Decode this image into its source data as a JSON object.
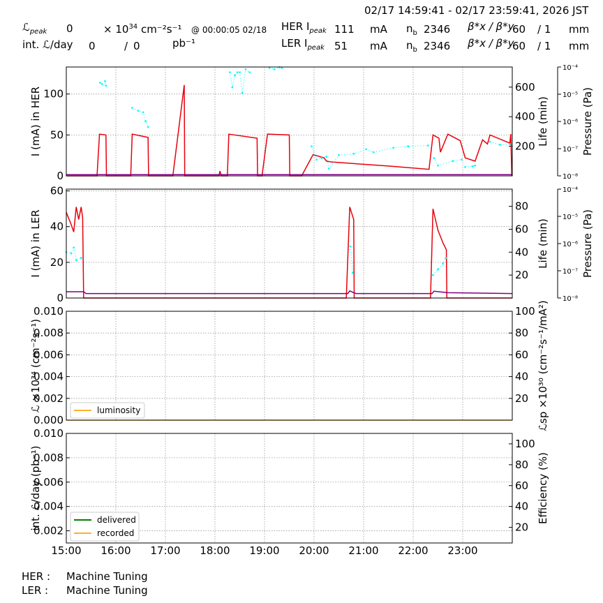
{
  "header": {
    "time_range": "02/17 14:59:41 - 02/17 23:59:41, 2026 JST",
    "lpeak_label": "ℒ",
    "lpeak_sub": "peak",
    "lpeak_value": "0",
    "lpeak_unit_prefix": "× 10",
    "lpeak_unit_exp": "34",
    "lpeak_unit_rest": "cm⁻²s⁻¹",
    "lpeak_time": "@ 00:00:05 02/18",
    "intl_label": "int. ℒ/day",
    "intl_value": "0",
    "intl_sep": "/",
    "intl_value2": "0",
    "intl_unit": "pb⁻¹",
    "her_label": "HER I",
    "her_sub": "peak",
    "her_value": "111",
    "her_unit": "mA",
    "her_nb_label": "n",
    "her_nb_sub": "b",
    "her_nb_value": "2346",
    "her_beta_label": "β*x / β*y",
    "her_beta_value": "60",
    "her_beta_ratio": "/ 1",
    "her_beta_unit": "mm",
    "ler_label": "LER I",
    "ler_sub": "peak",
    "ler_value": "51",
    "ler_unit": "mA",
    "ler_nb_label": "n",
    "ler_nb_sub": "b",
    "ler_nb_value": "2346",
    "ler_beta_label": "β*x / β*y",
    "ler_beta_value": "60",
    "ler_beta_ratio": "/ 1",
    "ler_beta_unit": "mm"
  },
  "footer": {
    "her_label": "HER :",
    "her_status": "Machine Tuning",
    "ler_label": "LER :",
    "ler_status": "Machine Tuning"
  },
  "colors": {
    "current": "#e8000b",
    "life": "#00ffff",
    "pressure": "#800080",
    "luminosity": "#ffb02e",
    "delivered": "#008000",
    "recorded": "#ffb02e",
    "grid": "#999999"
  },
  "chart_data": [
    {
      "type": "line",
      "panel": "her",
      "ylabel": "I (mA) in HER",
      "y2label": "Life (min)",
      "y3label": "Pressure (Pa)",
      "xlim": [
        15.0,
        24.0
      ],
      "ylim": [
        0,
        133
      ],
      "y2lim": [
        0,
        736
      ],
      "yticks": [
        0,
        50,
        100
      ],
      "y2ticks": [
        200,
        400,
        600
      ],
      "y3ticks": [
        "10⁻⁸",
        "10⁻⁷",
        "10⁻⁶",
        "10⁻⁵",
        "10⁻⁴"
      ],
      "series": [
        {
          "role": "current",
          "segments": [
            [
              [
                15.0,
                0
              ],
              [
                15.62,
                0
              ],
              [
                15.67,
                51
              ],
              [
                15.8,
                50
              ],
              [
                15.81,
                0
              ],
              [
                16.3,
                0
              ],
              [
                16.33,
                51
              ],
              [
                16.65,
                47
              ],
              [
                16.66,
                0
              ],
              [
                17.15,
                0
              ],
              [
                17.38,
                111
              ],
              [
                17.39,
                0
              ],
              [
                18.08,
                0
              ],
              [
                18.1,
                6
              ],
              [
                18.13,
                0
              ],
              [
                18.25,
                0
              ],
              [
                18.28,
                51
              ],
              [
                18.85,
                46
              ],
              [
                18.86,
                0
              ],
              [
                18.95,
                0
              ],
              [
                19.06,
                51
              ],
              [
                19.5,
                50
              ],
              [
                19.51,
                0
              ],
              [
                19.75,
                0
              ],
              [
                19.98,
                26
              ],
              [
                20.2,
                22
              ],
              [
                20.25,
                18
              ],
              [
                20.35,
                17
              ],
              [
                21.5,
                12
              ],
              [
                22.32,
                8
              ],
              [
                22.4,
                50
              ],
              [
                22.52,
                46
              ],
              [
                22.55,
                29
              ],
              [
                22.7,
                51
              ],
              [
                22.95,
                43
              ],
              [
                23.05,
                22
              ],
              [
                23.25,
                18
              ],
              [
                23.4,
                44
              ],
              [
                23.5,
                39
              ],
              [
                23.55,
                50
              ],
              [
                23.95,
                40
              ],
              [
                23.97,
                51
              ],
              [
                23.99,
                0
              ]
            ]
          ]
        },
        {
          "role": "life",
          "segments": [
            [
              [
                15.68,
                630
              ],
              [
                15.72,
                620
              ],
              [
                15.78,
                640
              ],
              [
                15.8,
                610
              ]
            ],
            [
              [
                16.33,
                460
              ],
              [
                16.45,
                440
              ],
              [
                16.55,
                430
              ],
              [
                16.6,
                370
              ],
              [
                16.65,
                330
              ]
            ],
            [
              [
                18.3,
                700
              ],
              [
                18.35,
                600
              ],
              [
                18.4,
                680
              ],
              [
                18.45,
                700
              ],
              [
                18.5,
                700
              ],
              [
                18.55,
                560
              ],
              [
                18.62,
                720
              ],
              [
                18.7,
                700
              ]
            ],
            [
              [
                19.1,
                730
              ],
              [
                19.2,
                720
              ],
              [
                19.3,
                735
              ],
              [
                19.35,
                730
              ]
            ],
            [
              [
                19.95,
                200
              ],
              [
                20.05,
                110
              ],
              [
                20.15,
                120
              ],
              [
                20.25,
                130
              ],
              [
                20.3,
                50
              ],
              [
                20.5,
                140
              ],
              [
                20.8,
                150
              ],
              [
                21.05,
                180
              ],
              [
                21.2,
                160
              ],
              [
                21.6,
                190
              ],
              [
                21.9,
                200
              ],
              [
                22.3,
                205
              ]
            ],
            [
              [
                22.42,
                120
              ],
              [
                22.5,
                70
              ],
              [
                22.8,
                100
              ],
              [
                22.98,
                110
              ]
            ],
            [
              [
                23.05,
                60
              ],
              [
                23.2,
                65
              ],
              [
                23.25,
                70
              ]
            ],
            [
              [
                23.55,
                230
              ],
              [
                23.75,
                210
              ],
              [
                23.95,
                215
              ]
            ]
          ]
        },
        {
          "role": "pressure",
          "segments": [
            [
              [
                15.0,
                1.5
              ],
              [
                24.0,
                1.5
              ]
            ]
          ]
        }
      ]
    },
    {
      "type": "line",
      "panel": "ler",
      "ylabel": "I (mA) in LER",
      "y2label": "Life (min)",
      "y3label": "Pressure (Pa)",
      "xlim": [
        15.0,
        24.0
      ],
      "ylim": [
        0,
        61
      ],
      "y2lim": [
        0,
        95
      ],
      "yticks": [
        0,
        20,
        40,
        60
      ],
      "y2ticks": [
        20,
        40,
        60,
        80
      ],
      "y3ticks": [
        "10⁻⁸",
        "10⁻⁷",
        "10⁻⁶",
        "10⁻⁵",
        "10⁻⁴"
      ],
      "series": [
        {
          "role": "current",
          "segments": [
            [
              [
                15.0,
                48
              ],
              [
                15.1,
                41
              ],
              [
                15.15,
                37
              ],
              [
                15.2,
                51
              ],
              [
                15.25,
                44
              ],
              [
                15.3,
                51
              ],
              [
                15.33,
                45
              ],
              [
                15.35,
                0
              ],
              [
                20.65,
                0
              ],
              [
                20.72,
                51
              ],
              [
                20.8,
                44
              ],
              [
                20.81,
                0
              ],
              [
                22.35,
                0
              ],
              [
                22.4,
                50
              ],
              [
                22.5,
                38
              ],
              [
                22.6,
                31
              ],
              [
                22.67,
                27
              ],
              [
                22.68,
                0
              ],
              [
                24.0,
                0
              ]
            ]
          ]
        },
        {
          "role": "life",
          "segments": [
            [
              [
                15.0,
                40
              ],
              [
                15.1,
                39
              ],
              [
                15.15,
                44
              ],
              [
                15.2,
                33
              ],
              [
                15.3,
                35
              ]
            ],
            [
              [
                20.73,
                45
              ],
              [
                20.78,
                22
              ]
            ],
            [
              [
                22.4,
                20
              ],
              [
                22.5,
                25
              ],
              [
                22.6,
                30
              ],
              [
                22.66,
                35
              ]
            ]
          ]
        },
        {
          "role": "pressure",
          "segments": [
            [
              [
                15.0,
                3.5
              ],
              [
                15.35,
                3.5
              ],
              [
                15.4,
                2.5
              ],
              [
                20.68,
                2.5
              ],
              [
                20.72,
                4
              ],
              [
                20.8,
                3
              ],
              [
                20.85,
                2.5
              ],
              [
                22.38,
                2.5
              ],
              [
                22.42,
                3.8
              ],
              [
                22.7,
                3
              ],
              [
                24.0,
                2.5
              ]
            ]
          ]
        }
      ]
    },
    {
      "type": "line",
      "panel": "luminosity",
      "ylabel": "ℒ ×10³⁴ (cm⁻²s⁻¹)",
      "y2label": "ℒsp ×10³⁰ (cm⁻²s⁻¹/mA²)",
      "xlim": [
        15.0,
        24.0
      ],
      "ylim": [
        0,
        0.01
      ],
      "y2lim": [
        0,
        100
      ],
      "yticks": [
        "0.000",
        "0.002",
        "0.004",
        "0.006",
        "0.008",
        "0.010"
      ],
      "y2ticks": [
        20,
        40,
        60,
        80,
        100
      ],
      "legend": [
        "luminosity"
      ],
      "legend_position": "lower-left",
      "series": [
        {
          "role": "luminosity",
          "name": "luminosity",
          "segments": [
            [
              [
                15.0,
                0
              ],
              [
                24.0,
                0
              ]
            ]
          ]
        }
      ]
    },
    {
      "type": "line",
      "panel": "integrated",
      "ylabel": "int. ℒ/day (pb⁻¹)",
      "y2label": "Efficiency (%)",
      "xlim": [
        15.0,
        24.0
      ],
      "ylim": [
        0.001,
        0.01
      ],
      "y2lim": [
        5,
        110
      ],
      "yticks": [
        "0.002",
        "0.004",
        "0.006",
        "0.008",
        "0.010"
      ],
      "y2ticks": [
        20,
        40,
        60,
        80,
        100
      ],
      "xticks": [
        "15:00",
        "16:00",
        "17:00",
        "18:00",
        "19:00",
        "20:00",
        "21:00",
        "22:00",
        "23:00"
      ],
      "legend": [
        "delivered",
        "recorded"
      ],
      "legend_position": "lower-left",
      "series": [
        {
          "role": "delivered",
          "name": "delivered",
          "segments": []
        },
        {
          "role": "recorded",
          "name": "recorded",
          "segments": []
        }
      ]
    }
  ]
}
